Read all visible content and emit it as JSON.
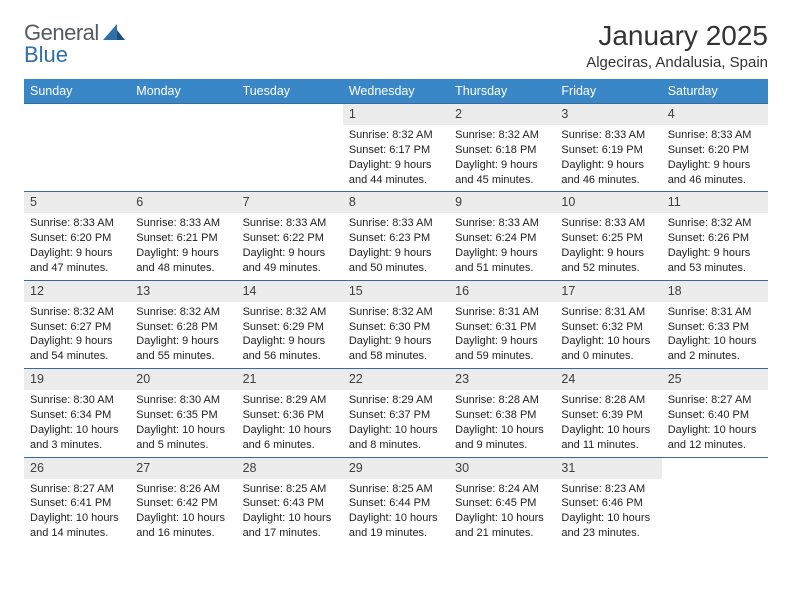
{
  "brand": {
    "part1": "General",
    "part2": "Blue"
  },
  "title": "January 2025",
  "location": "Algeciras, Andalusia, Spain",
  "colors": {
    "header_bg": "#3a87c8",
    "header_text": "#ffffff",
    "row_border": "#3a6a9a",
    "daynum_bg": "#ececec",
    "body_text": "#222222",
    "logo_gray": "#555b61",
    "logo_blue": "#2f6ea8"
  },
  "typography": {
    "title_fontsize": 28,
    "location_fontsize": 15,
    "weekday_fontsize": 12.5,
    "daynum_fontsize": 12.5,
    "daytext_fontsize": 11
  },
  "weekdays": [
    "Sunday",
    "Monday",
    "Tuesday",
    "Wednesday",
    "Thursday",
    "Friday",
    "Saturday"
  ],
  "weeks": [
    [
      {
        "n": "",
        "sr": "",
        "ss": "",
        "dl": ""
      },
      {
        "n": "",
        "sr": "",
        "ss": "",
        "dl": ""
      },
      {
        "n": "",
        "sr": "",
        "ss": "",
        "dl": ""
      },
      {
        "n": "1",
        "sr": "8:32 AM",
        "ss": "6:17 PM",
        "dl": "9 hours and 44 minutes."
      },
      {
        "n": "2",
        "sr": "8:32 AM",
        "ss": "6:18 PM",
        "dl": "9 hours and 45 minutes."
      },
      {
        "n": "3",
        "sr": "8:33 AM",
        "ss": "6:19 PM",
        "dl": "9 hours and 46 minutes."
      },
      {
        "n": "4",
        "sr": "8:33 AM",
        "ss": "6:20 PM",
        "dl": "9 hours and 46 minutes."
      }
    ],
    [
      {
        "n": "5",
        "sr": "8:33 AM",
        "ss": "6:20 PM",
        "dl": "9 hours and 47 minutes."
      },
      {
        "n": "6",
        "sr": "8:33 AM",
        "ss": "6:21 PM",
        "dl": "9 hours and 48 minutes."
      },
      {
        "n": "7",
        "sr": "8:33 AM",
        "ss": "6:22 PM",
        "dl": "9 hours and 49 minutes."
      },
      {
        "n": "8",
        "sr": "8:33 AM",
        "ss": "6:23 PM",
        "dl": "9 hours and 50 minutes."
      },
      {
        "n": "9",
        "sr": "8:33 AM",
        "ss": "6:24 PM",
        "dl": "9 hours and 51 minutes."
      },
      {
        "n": "10",
        "sr": "8:33 AM",
        "ss": "6:25 PM",
        "dl": "9 hours and 52 minutes."
      },
      {
        "n": "11",
        "sr": "8:32 AM",
        "ss": "6:26 PM",
        "dl": "9 hours and 53 minutes."
      }
    ],
    [
      {
        "n": "12",
        "sr": "8:32 AM",
        "ss": "6:27 PM",
        "dl": "9 hours and 54 minutes."
      },
      {
        "n": "13",
        "sr": "8:32 AM",
        "ss": "6:28 PM",
        "dl": "9 hours and 55 minutes."
      },
      {
        "n": "14",
        "sr": "8:32 AM",
        "ss": "6:29 PM",
        "dl": "9 hours and 56 minutes."
      },
      {
        "n": "15",
        "sr": "8:32 AM",
        "ss": "6:30 PM",
        "dl": "9 hours and 58 minutes."
      },
      {
        "n": "16",
        "sr": "8:31 AM",
        "ss": "6:31 PM",
        "dl": "9 hours and 59 minutes."
      },
      {
        "n": "17",
        "sr": "8:31 AM",
        "ss": "6:32 PM",
        "dl": "10 hours and 0 minutes."
      },
      {
        "n": "18",
        "sr": "8:31 AM",
        "ss": "6:33 PM",
        "dl": "10 hours and 2 minutes."
      }
    ],
    [
      {
        "n": "19",
        "sr": "8:30 AM",
        "ss": "6:34 PM",
        "dl": "10 hours and 3 minutes."
      },
      {
        "n": "20",
        "sr": "8:30 AM",
        "ss": "6:35 PM",
        "dl": "10 hours and 5 minutes."
      },
      {
        "n": "21",
        "sr": "8:29 AM",
        "ss": "6:36 PM",
        "dl": "10 hours and 6 minutes."
      },
      {
        "n": "22",
        "sr": "8:29 AM",
        "ss": "6:37 PM",
        "dl": "10 hours and 8 minutes."
      },
      {
        "n": "23",
        "sr": "8:28 AM",
        "ss": "6:38 PM",
        "dl": "10 hours and 9 minutes."
      },
      {
        "n": "24",
        "sr": "8:28 AM",
        "ss": "6:39 PM",
        "dl": "10 hours and 11 minutes."
      },
      {
        "n": "25",
        "sr": "8:27 AM",
        "ss": "6:40 PM",
        "dl": "10 hours and 12 minutes."
      }
    ],
    [
      {
        "n": "26",
        "sr": "8:27 AM",
        "ss": "6:41 PM",
        "dl": "10 hours and 14 minutes."
      },
      {
        "n": "27",
        "sr": "8:26 AM",
        "ss": "6:42 PM",
        "dl": "10 hours and 16 minutes."
      },
      {
        "n": "28",
        "sr": "8:25 AM",
        "ss": "6:43 PM",
        "dl": "10 hours and 17 minutes."
      },
      {
        "n": "29",
        "sr": "8:25 AM",
        "ss": "6:44 PM",
        "dl": "10 hours and 19 minutes."
      },
      {
        "n": "30",
        "sr": "8:24 AM",
        "ss": "6:45 PM",
        "dl": "10 hours and 21 minutes."
      },
      {
        "n": "31",
        "sr": "8:23 AM",
        "ss": "6:46 PM",
        "dl": "10 hours and 23 minutes."
      },
      {
        "n": "",
        "sr": "",
        "ss": "",
        "dl": ""
      }
    ]
  ],
  "labels": {
    "sunrise_prefix": "Sunrise: ",
    "sunset_prefix": "Sunset: ",
    "daylight_prefix": "Daylight: "
  }
}
